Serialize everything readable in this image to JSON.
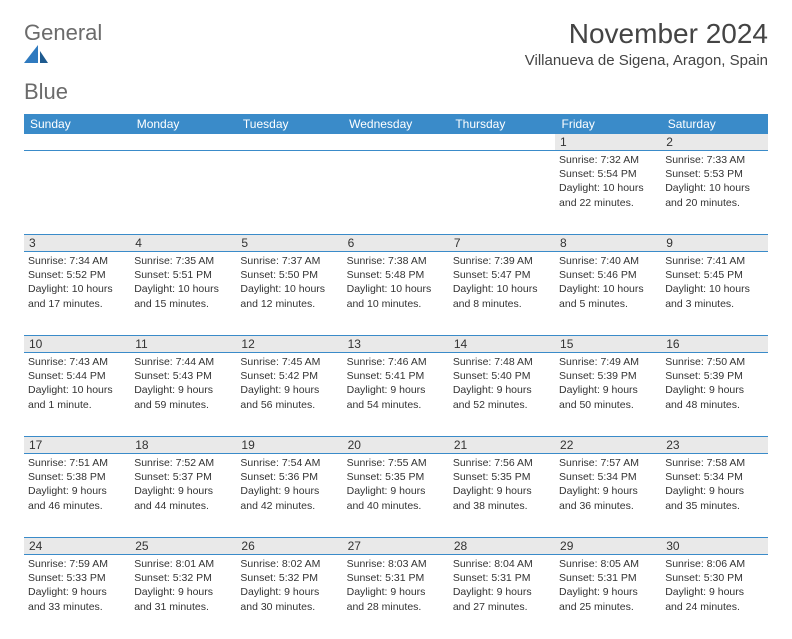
{
  "logo": {
    "text1": "General",
    "text2": "Blue"
  },
  "title": "November 2024",
  "location": "Villanueva de Sigena, Aragon, Spain",
  "colors": {
    "header_bg": "#3a8bc9",
    "header_text": "#ffffff",
    "daynum_bg": "#e9e9e9",
    "border": "#3a8bc9",
    "logo_gray": "#6b6b6b",
    "logo_blue": "#2f7abf"
  },
  "day_headers": [
    "Sunday",
    "Monday",
    "Tuesday",
    "Wednesday",
    "Thursday",
    "Friday",
    "Saturday"
  ],
  "weeks": [
    {
      "nums": [
        "",
        "",
        "",
        "",
        "",
        "1",
        "2"
      ],
      "cells": [
        null,
        null,
        null,
        null,
        null,
        {
          "sunrise": "Sunrise: 7:32 AM",
          "sunset": "Sunset: 5:54 PM",
          "day1": "Daylight: 10 hours",
          "day2": "and 22 minutes."
        },
        {
          "sunrise": "Sunrise: 7:33 AM",
          "sunset": "Sunset: 5:53 PM",
          "day1": "Daylight: 10 hours",
          "day2": "and 20 minutes."
        }
      ]
    },
    {
      "nums": [
        "3",
        "4",
        "5",
        "6",
        "7",
        "8",
        "9"
      ],
      "cells": [
        {
          "sunrise": "Sunrise: 7:34 AM",
          "sunset": "Sunset: 5:52 PM",
          "day1": "Daylight: 10 hours",
          "day2": "and 17 minutes."
        },
        {
          "sunrise": "Sunrise: 7:35 AM",
          "sunset": "Sunset: 5:51 PM",
          "day1": "Daylight: 10 hours",
          "day2": "and 15 minutes."
        },
        {
          "sunrise": "Sunrise: 7:37 AM",
          "sunset": "Sunset: 5:50 PM",
          "day1": "Daylight: 10 hours",
          "day2": "and 12 minutes."
        },
        {
          "sunrise": "Sunrise: 7:38 AM",
          "sunset": "Sunset: 5:48 PM",
          "day1": "Daylight: 10 hours",
          "day2": "and 10 minutes."
        },
        {
          "sunrise": "Sunrise: 7:39 AM",
          "sunset": "Sunset: 5:47 PM",
          "day1": "Daylight: 10 hours",
          "day2": "and 8 minutes."
        },
        {
          "sunrise": "Sunrise: 7:40 AM",
          "sunset": "Sunset: 5:46 PM",
          "day1": "Daylight: 10 hours",
          "day2": "and 5 minutes."
        },
        {
          "sunrise": "Sunrise: 7:41 AM",
          "sunset": "Sunset: 5:45 PM",
          "day1": "Daylight: 10 hours",
          "day2": "and 3 minutes."
        }
      ]
    },
    {
      "nums": [
        "10",
        "11",
        "12",
        "13",
        "14",
        "15",
        "16"
      ],
      "cells": [
        {
          "sunrise": "Sunrise: 7:43 AM",
          "sunset": "Sunset: 5:44 PM",
          "day1": "Daylight: 10 hours",
          "day2": "and 1 minute."
        },
        {
          "sunrise": "Sunrise: 7:44 AM",
          "sunset": "Sunset: 5:43 PM",
          "day1": "Daylight: 9 hours",
          "day2": "and 59 minutes."
        },
        {
          "sunrise": "Sunrise: 7:45 AM",
          "sunset": "Sunset: 5:42 PM",
          "day1": "Daylight: 9 hours",
          "day2": "and 56 minutes."
        },
        {
          "sunrise": "Sunrise: 7:46 AM",
          "sunset": "Sunset: 5:41 PM",
          "day1": "Daylight: 9 hours",
          "day2": "and 54 minutes."
        },
        {
          "sunrise": "Sunrise: 7:48 AM",
          "sunset": "Sunset: 5:40 PM",
          "day1": "Daylight: 9 hours",
          "day2": "and 52 minutes."
        },
        {
          "sunrise": "Sunrise: 7:49 AM",
          "sunset": "Sunset: 5:39 PM",
          "day1": "Daylight: 9 hours",
          "day2": "and 50 minutes."
        },
        {
          "sunrise": "Sunrise: 7:50 AM",
          "sunset": "Sunset: 5:39 PM",
          "day1": "Daylight: 9 hours",
          "day2": "and 48 minutes."
        }
      ]
    },
    {
      "nums": [
        "17",
        "18",
        "19",
        "20",
        "21",
        "22",
        "23"
      ],
      "cells": [
        {
          "sunrise": "Sunrise: 7:51 AM",
          "sunset": "Sunset: 5:38 PM",
          "day1": "Daylight: 9 hours",
          "day2": "and 46 minutes."
        },
        {
          "sunrise": "Sunrise: 7:52 AM",
          "sunset": "Sunset: 5:37 PM",
          "day1": "Daylight: 9 hours",
          "day2": "and 44 minutes."
        },
        {
          "sunrise": "Sunrise: 7:54 AM",
          "sunset": "Sunset: 5:36 PM",
          "day1": "Daylight: 9 hours",
          "day2": "and 42 minutes."
        },
        {
          "sunrise": "Sunrise: 7:55 AM",
          "sunset": "Sunset: 5:35 PM",
          "day1": "Daylight: 9 hours",
          "day2": "and 40 minutes."
        },
        {
          "sunrise": "Sunrise: 7:56 AM",
          "sunset": "Sunset: 5:35 PM",
          "day1": "Daylight: 9 hours",
          "day2": "and 38 minutes."
        },
        {
          "sunrise": "Sunrise: 7:57 AM",
          "sunset": "Sunset: 5:34 PM",
          "day1": "Daylight: 9 hours",
          "day2": "and 36 minutes."
        },
        {
          "sunrise": "Sunrise: 7:58 AM",
          "sunset": "Sunset: 5:34 PM",
          "day1": "Daylight: 9 hours",
          "day2": "and 35 minutes."
        }
      ]
    },
    {
      "nums": [
        "24",
        "25",
        "26",
        "27",
        "28",
        "29",
        "30"
      ],
      "cells": [
        {
          "sunrise": "Sunrise: 7:59 AM",
          "sunset": "Sunset: 5:33 PM",
          "day1": "Daylight: 9 hours",
          "day2": "and 33 minutes."
        },
        {
          "sunrise": "Sunrise: 8:01 AM",
          "sunset": "Sunset: 5:32 PM",
          "day1": "Daylight: 9 hours",
          "day2": "and 31 minutes."
        },
        {
          "sunrise": "Sunrise: 8:02 AM",
          "sunset": "Sunset: 5:32 PM",
          "day1": "Daylight: 9 hours",
          "day2": "and 30 minutes."
        },
        {
          "sunrise": "Sunrise: 8:03 AM",
          "sunset": "Sunset: 5:31 PM",
          "day1": "Daylight: 9 hours",
          "day2": "and 28 minutes."
        },
        {
          "sunrise": "Sunrise: 8:04 AM",
          "sunset": "Sunset: 5:31 PM",
          "day1": "Daylight: 9 hours",
          "day2": "and 27 minutes."
        },
        {
          "sunrise": "Sunrise: 8:05 AM",
          "sunset": "Sunset: 5:31 PM",
          "day1": "Daylight: 9 hours",
          "day2": "and 25 minutes."
        },
        {
          "sunrise": "Sunrise: 8:06 AM",
          "sunset": "Sunset: 5:30 PM",
          "day1": "Daylight: 9 hours",
          "day2": "and 24 minutes."
        }
      ]
    }
  ]
}
